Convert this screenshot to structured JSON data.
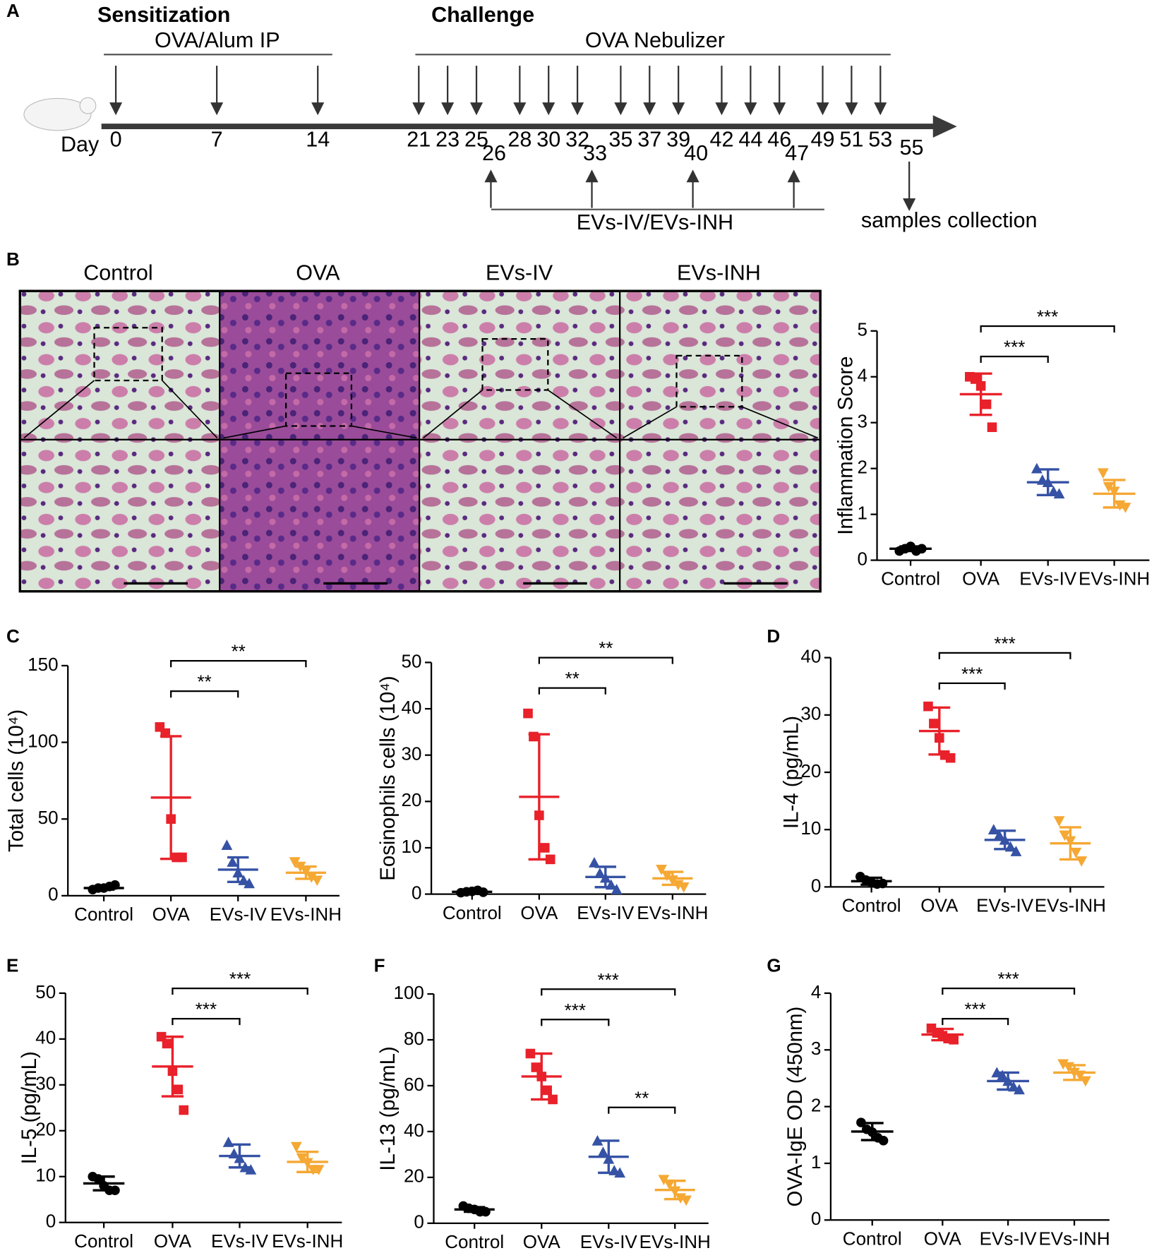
{
  "panel_labels": [
    "A",
    "B",
    "C",
    "D",
    "E",
    "F",
    "G"
  ],
  "timeline": {
    "sensitization_title": "Sensitization",
    "sensitization_label": "OVA/Alum IP",
    "challenge_title": "Challenge",
    "challenge_label": "OVA Nebulizer",
    "day_label": "Day",
    "days": [
      0,
      7,
      14,
      21,
      23,
      25,
      28,
      30,
      32,
      35,
      37,
      39,
      42,
      44,
      46,
      49,
      51,
      53
    ],
    "treatment_days": [
      26,
      33,
      40,
      47
    ],
    "treatment_label": "EVs-IV/EVs-INH",
    "collection_day": 55,
    "collection_label": "samples collection"
  },
  "histology": {
    "groups": [
      "Control",
      "OVA",
      "EVs-IV",
      "EVs-INH"
    ]
  },
  "chart_data": [
    {
      "type": "dotplot",
      "ylabel": "Inflammation Score",
      "categories": [
        "Control",
        "OVA",
        "EVs-IV",
        "EVs-INH"
      ],
      "colors": [
        "#000000",
        "#e8212a",
        "#3552a5",
        "#f5a833"
      ],
      "points": [
        [
          0.2,
          0.25,
          0.3,
          0.2,
          0.25
        ],
        [
          4.0,
          3.95,
          3.8,
          3.4,
          2.9
        ],
        [
          2.0,
          1.75,
          1.7,
          1.5,
          1.45
        ],
        [
          1.9,
          1.6,
          1.5,
          1.2,
          1.15
        ]
      ],
      "means": [
        0.25,
        3.62,
        1.7,
        1.45
      ],
      "sd": [
        0.05,
        0.45,
        0.28,
        0.3
      ],
      "ylim": [
        0,
        5
      ],
      "yticks": [
        0,
        1,
        2,
        3,
        4,
        5
      ],
      "significance": [
        {
          "from": "OVA",
          "to": "EVs-IV",
          "label": "***"
        },
        {
          "from": "OVA",
          "to": "EVs-INH",
          "label": "***"
        }
      ]
    },
    {
      "type": "dotplot",
      "ylabel": "Total cells (10⁴)",
      "categories": [
        "Control",
        "OVA",
        "EVs-IV",
        "EVs-INH"
      ],
      "colors": [
        "#000000",
        "#e8212a",
        "#3552a5",
        "#f5a833"
      ],
      "points": [
        [
          4,
          5,
          5,
          6,
          7
        ],
        [
          110,
          106,
          50,
          25,
          25
        ],
        [
          33,
          22,
          15,
          10,
          8
        ],
        [
          22,
          19,
          16,
          12,
          10
        ]
      ],
      "means": [
        5,
        64,
        17,
        15
      ],
      "sd": [
        1,
        40,
        8,
        4
      ],
      "ylim": [
        0,
        150
      ],
      "yticks": [
        0,
        50,
        100,
        150
      ],
      "significance": [
        {
          "from": "OVA",
          "to": "EVs-IV",
          "label": "**"
        },
        {
          "from": "OVA",
          "to": "EVs-INH",
          "label": "**"
        }
      ]
    },
    {
      "type": "dotplot",
      "ylabel": "Eosinophils cells (10⁴)",
      "categories": [
        "Control",
        "OVA",
        "EVs-IV",
        "EVs-INH"
      ],
      "colors": [
        "#000000",
        "#e8212a",
        "#3552a5",
        "#f5a833"
      ],
      "points": [
        [
          0.3,
          0.5,
          0.6,
          0.8,
          0.4
        ],
        [
          39,
          34,
          17,
          10,
          7.5
        ],
        [
          6.8,
          4.5,
          3.5,
          2,
          1
        ],
        [
          5.3,
          4,
          3,
          2,
          1.5
        ]
      ],
      "means": [
        0.5,
        21,
        3.7,
        3.4
      ],
      "sd": [
        0.2,
        13.5,
        2.2,
        1.4
      ],
      "ylim": [
        0,
        50
      ],
      "yticks": [
        0,
        10,
        20,
        30,
        40,
        50
      ],
      "significance": [
        {
          "from": "OVA",
          "to": "EVs-IV",
          "label": "**"
        },
        {
          "from": "OVA",
          "to": "EVs-INH",
          "label": "**"
        }
      ]
    },
    {
      "type": "dotplot",
      "ylabel": "IL-4 (pg/mL)",
      "categories": [
        "Control",
        "OVA",
        "EVs-IV",
        "EVs-INH"
      ],
      "colors": [
        "#000000",
        "#e8212a",
        "#3552a5",
        "#f5a833"
      ],
      "points": [
        [
          1.8,
          1.2,
          0.8,
          0.5,
          0.6
        ],
        [
          31.5,
          28.5,
          26,
          23,
          22.5
        ],
        [
          10,
          9,
          8.2,
          7,
          6.2
        ],
        [
          11.5,
          9,
          8,
          6,
          4.5
        ]
      ],
      "means": [
        1,
        27.2,
        8.2,
        7.6
      ],
      "sd": [
        0.6,
        4.1,
        1.6,
        2.8
      ],
      "ylim": [
        0,
        40
      ],
      "yticks": [
        0,
        10,
        20,
        30,
        40
      ],
      "significance": [
        {
          "from": "OVA",
          "to": "EVs-IV",
          "label": "***"
        },
        {
          "from": "OVA",
          "to": "EVs-INH",
          "label": "***"
        }
      ]
    },
    {
      "type": "dotplot",
      "ylabel": "IL-5 (pg/mL)",
      "categories": [
        "Control",
        "OVA",
        "EVs-IV",
        "EVs-INH"
      ],
      "colors": [
        "#000000",
        "#e8212a",
        "#3552a5",
        "#f5a833"
      ],
      "points": [
        [
          10,
          9.5,
          8,
          7,
          7
        ],
        [
          40.5,
          39,
          33,
          29,
          24.5
        ],
        [
          17.5,
          15,
          14,
          12,
          11.5
        ],
        [
          16.5,
          14,
          13,
          11.5,
          11.5
        ]
      ],
      "means": [
        8.5,
        34,
        14.5,
        13.2
      ],
      "sd": [
        1.5,
        6.5,
        2.5,
        2.2
      ],
      "ylim": [
        0,
        50
      ],
      "yticks": [
        0,
        10,
        20,
        30,
        40,
        50
      ],
      "significance": [
        {
          "from": "OVA",
          "to": "EVs-IV",
          "label": "***"
        },
        {
          "from": "OVA",
          "to": "EVs-INH",
          "label": "***"
        }
      ]
    },
    {
      "type": "dotplot",
      "ylabel": "IL-13 (pg/mL)",
      "categories": [
        "Control",
        "OVA",
        "EVs-IV",
        "EVs-INH"
      ],
      "colors": [
        "#000000",
        "#e8212a",
        "#3552a5",
        "#f5a833"
      ],
      "points": [
        [
          7.5,
          6.5,
          6,
          5,
          5
        ],
        [
          74,
          68,
          64,
          58,
          54
        ],
        [
          36,
          31,
          28,
          23,
          22
        ],
        [
          19,
          17,
          14,
          11,
          10
        ]
      ],
      "means": [
        6,
        64,
        29,
        14.5
      ],
      "sd": [
        1,
        10,
        7,
        4
      ],
      "ylim": [
        0,
        100
      ],
      "yticks": [
        0,
        20,
        40,
        60,
        80,
        100
      ],
      "significance": [
        {
          "from": "OVA",
          "to": "EVs-IV",
          "label": "***"
        },
        {
          "from": "OVA",
          "to": "EVs-INH",
          "label": "***"
        },
        {
          "from": "EVs-IV",
          "to": "EVs-INH",
          "label": "**"
        }
      ]
    },
    {
      "type": "dotplot",
      "ylabel": "OVA-IgE OD (450nm)",
      "categories": [
        "Control",
        "OVA",
        "EVs-IV",
        "EVs-INH"
      ],
      "colors": [
        "#000000",
        "#e8212a",
        "#3552a5",
        "#f5a833"
      ],
      "points": [
        [
          1.72,
          1.6,
          1.55,
          1.45,
          1.4
        ],
        [
          3.38,
          3.3,
          3.25,
          3.2,
          3.18
        ],
        [
          2.6,
          2.55,
          2.45,
          2.35,
          2.3
        ],
        [
          2.75,
          2.7,
          2.6,
          2.55,
          2.45
        ]
      ],
      "means": [
        1.56,
        3.27,
        2.45,
        2.6
      ],
      "sd": [
        0.15,
        0.1,
        0.15,
        0.13
      ],
      "ylim": [
        0,
        4
      ],
      "yticks": [
        0,
        1,
        2,
        3,
        4
      ],
      "significance": [
        {
          "from": "OVA",
          "to": "EVs-IV",
          "label": "***"
        },
        {
          "from": "OVA",
          "to": "EVs-INH",
          "label": "***"
        }
      ]
    }
  ]
}
